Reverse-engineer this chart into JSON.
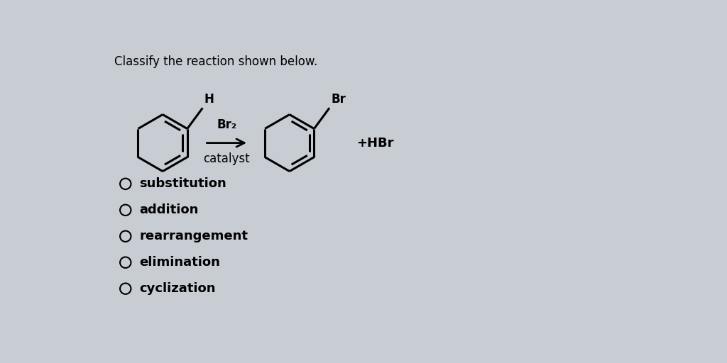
{
  "title": "Classify the reaction shown below.",
  "title_fontsize": 12,
  "background_color": "#c8cdd4",
  "text_color": "#000000",
  "options": [
    "substitution",
    "addition",
    "rearrangement",
    "elimination",
    "cyclization"
  ],
  "options_fontsize": 13,
  "reaction_label_above": "Br₂",
  "reaction_label_below": "catalyst",
  "reaction_label_fontsize": 12,
  "product_label": "+HBr",
  "product_label_fontsize": 13,
  "reactant_H_label": "H",
  "product_Br_label": "Br",
  "ring_lw": 2.2,
  "ring_color": "#000000"
}
